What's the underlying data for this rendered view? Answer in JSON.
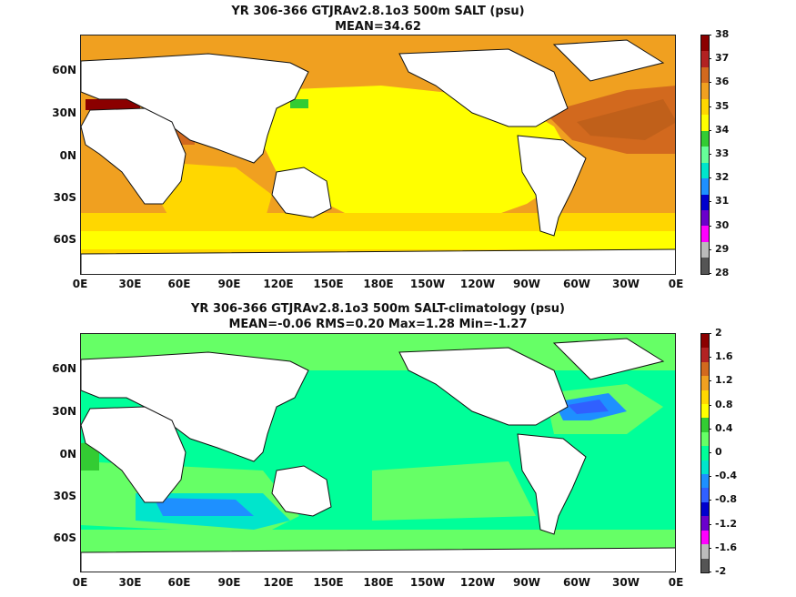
{
  "panel1": {
    "title_line1": "YR 306-366 GTJRAv2.8.1o3 500m SALT (psu)",
    "title_line2": "MEAN=34.62",
    "colorbar_labels": [
      "38",
      "37",
      "36",
      "35",
      "34",
      "33",
      "32",
      "31",
      "30",
      "29",
      "28"
    ],
    "colorbar_colors": [
      "#8b0000",
      "#b22222",
      "#d2691e",
      "#f0a020",
      "#ffd700",
      "#ffff00",
      "#33cc33",
      "#66ff99",
      "#00e5cc",
      "#1e90ff",
      "#0000cd",
      "#6a00cc",
      "#ff00ff",
      "#bbbbbb",
      "#555555"
    ]
  },
  "panel2": {
    "title_line1": "YR 306-366 GTJRAv2.8.1o3 500m SALT-climatology (psu)",
    "title_line2": "MEAN=-0.06   RMS=0.20   Max=1.28   Min=-1.27",
    "colorbar_labels": [
      "2",
      "1.6",
      "1.2",
      "0.8",
      "0.4",
      "0",
      "-0.4",
      "-0.8",
      "-1.2",
      "-1.6",
      "-2"
    ],
    "colorbar_colors": [
      "#8b0000",
      "#b22222",
      "#d2691e",
      "#f0a020",
      "#ffd700",
      "#ffff00",
      "#33cc33",
      "#66ff66",
      "#00ff99",
      "#00e5cc",
      "#1e90ff",
      "#3060ff",
      "#0000cd",
      "#6a00cc",
      "#ff00ff",
      "#bbbbbb",
      "#555555"
    ]
  },
  "lat_labels": [
    "60N",
    "30N",
    "0N",
    "30S",
    "60S"
  ],
  "lon_labels": [
    "0E",
    "30E",
    "60E",
    "90E",
    "120E",
    "150E",
    "180E",
    "150W",
    "120W",
    "90W",
    "60W",
    "30W",
    "0E"
  ]
}
